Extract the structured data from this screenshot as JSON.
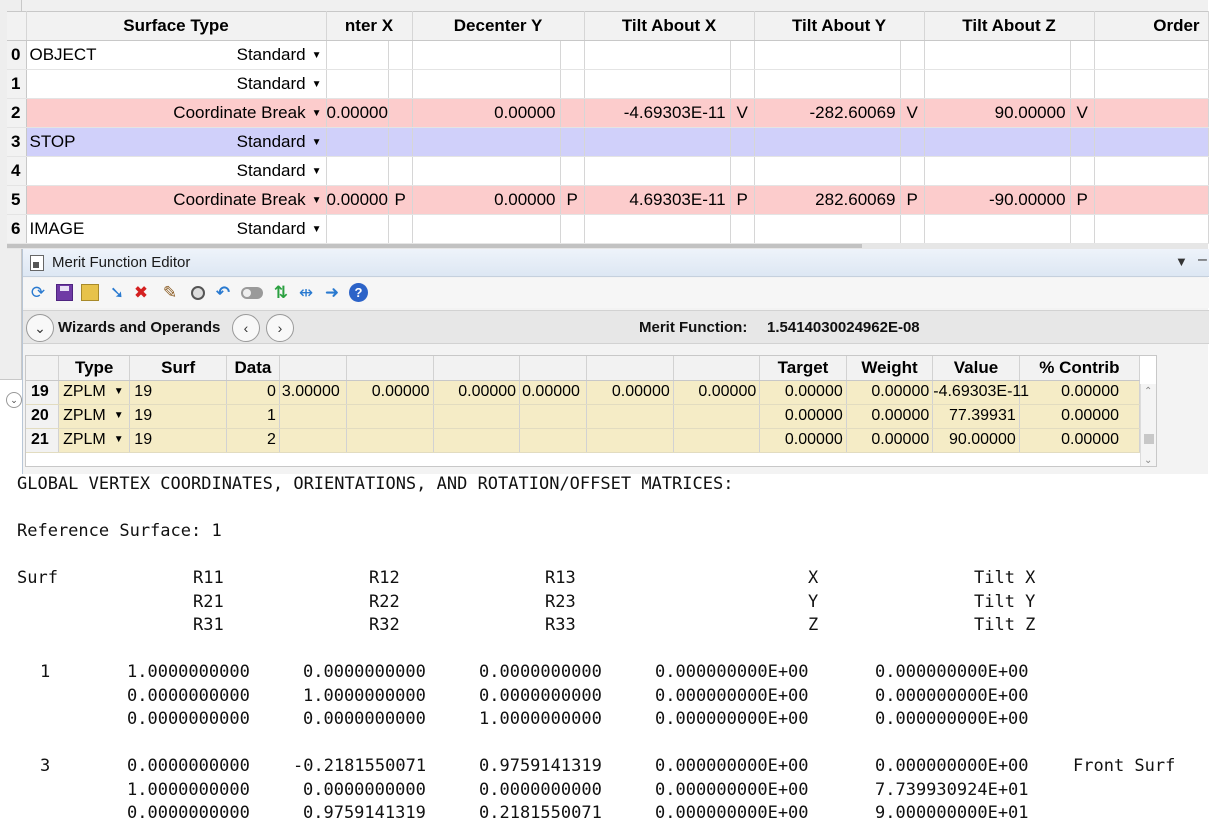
{
  "lde": {
    "columns": [
      "Surface Type",
      "nter X",
      "Decenter Y",
      "Tilt About X",
      "Tilt About Y",
      "Tilt About Z",
      "Order"
    ],
    "rows": [
      {
        "num": "0",
        "comment": "OBJECT",
        "type": "Standard",
        "dx": "",
        "dx_s": "",
        "dy": "",
        "dy_s": "",
        "tx": "",
        "tx_s": "",
        "ty": "",
        "ty_s": "",
        "tz": "",
        "tz_s": ""
      },
      {
        "num": "1",
        "comment": "",
        "type": "Standard",
        "dx": "",
        "dx_s": "",
        "dy": "",
        "dy_s": "",
        "tx": "",
        "tx_s": "",
        "ty": "",
        "ty_s": "",
        "tz": "",
        "tz_s": ""
      },
      {
        "num": "2",
        "comment": "",
        "type": "Coordinate Break",
        "dx": "0.00000",
        "dx_s": "",
        "dy": "0.00000",
        "dy_s": "",
        "tx": "-4.69303E-11",
        "tx_s": "V",
        "ty": "-282.60069",
        "ty_s": "V",
        "tz": "90.00000",
        "tz_s": "V"
      },
      {
        "num": "3",
        "comment": "STOP",
        "type": "Standard",
        "dx": "",
        "dx_s": "",
        "dy": "",
        "dy_s": "",
        "tx": "",
        "tx_s": "",
        "ty": "",
        "ty_s": "",
        "tz": "",
        "tz_s": ""
      },
      {
        "num": "4",
        "comment": "",
        "type": "Standard",
        "dx": "",
        "dx_s": "",
        "dy": "",
        "dy_s": "",
        "tx": "",
        "tx_s": "",
        "ty": "",
        "ty_s": "",
        "tz": "",
        "tz_s": ""
      },
      {
        "num": "5",
        "comment": "",
        "type": "Coordinate Break",
        "dx": "0.00000",
        "dx_s": "P",
        "dy": "0.00000",
        "dy_s": "P",
        "tx": "4.69303E-11",
        "tx_s": "P",
        "ty": "282.60069",
        "ty_s": "P",
        "tz": "-90.00000",
        "tz_s": "P"
      },
      {
        "num": "6",
        "comment": "IMAGE",
        "type": "Standard",
        "dx": "",
        "dx_s": "",
        "dy": "",
        "dy_s": "",
        "tx": "",
        "tx_s": "",
        "ty": "",
        "ty_s": "",
        "tz": "",
        "tz_s": ""
      }
    ]
  },
  "mfe": {
    "title": "Merit Function Editor",
    "toolbar_icons": [
      "refresh-icon",
      "save-icon",
      "open-icon",
      "insert-icon",
      "delete-icon",
      "wand-icon",
      "gear-icon",
      "undo-icon",
      "toggle-icon",
      "arrows-icon",
      "collapse-icon",
      "arrow-right-icon",
      "help-icon"
    ],
    "wizards_label": "Wizards and Operands",
    "merit_label": "Merit Function:",
    "merit_value": "1.5414030024962E-08",
    "columns": [
      "Type",
      "Surf",
      "Data",
      "",
      "",
      "",
      "",
      "",
      "",
      "Target",
      "Weight",
      "Value",
      "% Contrib"
    ],
    "rows": [
      {
        "num": "19",
        "type": "ZPLM",
        "surf": "19",
        "data": "0",
        "p1": "3.00000",
        "p2": "0.00000",
        "p3": "0.00000",
        "p4": "0.00000",
        "p5": "0.00000",
        "p6": "0.00000",
        "target": "0.00000",
        "weight": "0.00000",
        "value": "-4.69303E-11",
        "contrib": "0.00000"
      },
      {
        "num": "20",
        "type": "ZPLM",
        "surf": "19",
        "data": "1",
        "p1": "",
        "p2": "",
        "p3": "",
        "p4": "",
        "p5": "",
        "p6": "",
        "target": "0.00000",
        "weight": "0.00000",
        "value": "77.39931",
        "contrib": "0.00000"
      },
      {
        "num": "21",
        "type": "ZPLM",
        "surf": "19",
        "data": "2",
        "p1": "",
        "p2": "",
        "p3": "",
        "p4": "",
        "p5": "",
        "p6": "",
        "target": "0.00000",
        "weight": "0.00000",
        "value": "90.00000",
        "contrib": "0.00000"
      }
    ]
  },
  "report": {
    "heading": "GLOBAL VERTEX COORDINATES, ORIENTATIONS, AND ROTATION/OFFSET MATRICES:",
    "reference": "Reference Surface: 1",
    "header_rows": [
      {
        "surf": "Surf",
        "c1": "R11",
        "c2": "R12",
        "c3": "R13",
        "c4": "X",
        "c5": "Tilt X"
      },
      {
        "surf": "",
        "c1": "R21",
        "c2": "R22",
        "c3": "R23",
        "c4": "Y",
        "c5": "Tilt Y"
      },
      {
        "surf": "",
        "c1": "R31",
        "c2": "R32",
        "c3": "R33",
        "c4": "Z",
        "c5": "Tilt Z"
      }
    ],
    "blocks": [
      {
        "surf": "1",
        "rows": [
          {
            "c1": "1.0000000000",
            "c2": "0.0000000000",
            "c3": "0.0000000000",
            "c4": "0.000000000E+00",
            "c5": "0.000000000E+00",
            "note": ""
          },
          {
            "c1": "0.0000000000",
            "c2": "1.0000000000",
            "c3": "0.0000000000",
            "c4": "0.000000000E+00",
            "c5": "0.000000000E+00",
            "note": ""
          },
          {
            "c1": "0.0000000000",
            "c2": "0.0000000000",
            "c3": "1.0000000000",
            "c4": "0.000000000E+00",
            "c5": "0.000000000E+00",
            "note": ""
          }
        ]
      },
      {
        "surf": "3",
        "rows": [
          {
            "c1": "0.0000000000",
            "c2": "-0.2181550071",
            "c3": "0.9759141319",
            "c4": "0.000000000E+00",
            "c5": "0.000000000E+00",
            "note": "Front Surf"
          },
          {
            "c1": "1.0000000000",
            "c2": "0.0000000000",
            "c3": "0.0000000000",
            "c4": "0.000000000E+00",
            "c5": "7.739930924E+01",
            "note": ""
          },
          {
            "c1": "0.0000000000",
            "c2": "0.9759141319",
            "c3": "0.2181550071",
            "c4": "0.000000000E+00",
            "c5": "9.000000000E+01",
            "note": ""
          }
        ]
      }
    ]
  }
}
